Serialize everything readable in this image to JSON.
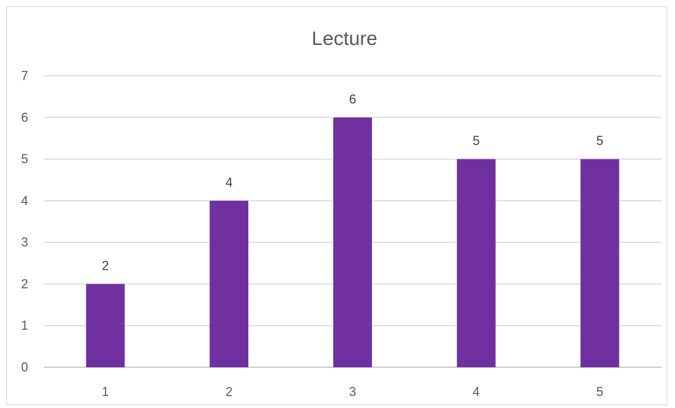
{
  "chart_data": {
    "type": "bar",
    "title": "Lecture",
    "categories": [
      "1",
      "2",
      "3",
      "4",
      "5"
    ],
    "values": [
      2,
      4,
      6,
      5,
      5
    ],
    "data_labels": [
      "2",
      "4",
      "6",
      "5",
      "5"
    ],
    "y_ticks": [
      "0",
      "1",
      "2",
      "3",
      "4",
      "5",
      "6",
      "7"
    ],
    "ylim": [
      0,
      7
    ],
    "xlabel": "",
    "ylabel": "",
    "grid": true,
    "legend": "none",
    "bar_color": "#7030A0"
  }
}
